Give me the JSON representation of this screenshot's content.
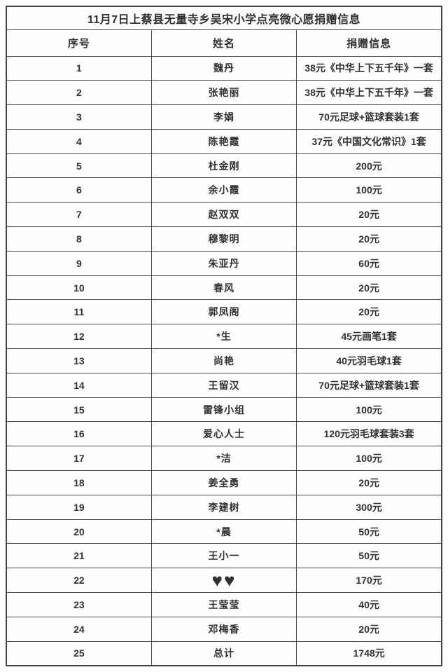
{
  "table": {
    "title": "11月7日上蔡县无量寺乡吴宋小学点亮微心愿捐赠信息",
    "headers": [
      "序号",
      "姓名",
      "捐赠信息"
    ],
    "rows": [
      {
        "no": "1",
        "name": "魏丹",
        "donation": "38元《中华上下五千年》一套"
      },
      {
        "no": "2",
        "name": "张艳丽",
        "donation": "38元《中华上下五千年》一套"
      },
      {
        "no": "3",
        "name": "李娟",
        "donation": "70元足球+篮球套装1套"
      },
      {
        "no": "4",
        "name": "陈艳霞",
        "donation": "37元《中国文化常识》1套"
      },
      {
        "no": "5",
        "name": "杜金刚",
        "donation": "200元"
      },
      {
        "no": "6",
        "name": "余小霞",
        "donation": "100元"
      },
      {
        "no": "7",
        "name": "赵双双",
        "donation": "20元"
      },
      {
        "no": "8",
        "name": "穆黎明",
        "donation": "20元"
      },
      {
        "no": "9",
        "name": "朱亚丹",
        "donation": "60元"
      },
      {
        "no": "10",
        "name": "春风",
        "donation": "20元"
      },
      {
        "no": "11",
        "name": "郭凤阁",
        "donation": "20元"
      },
      {
        "no": "12",
        "name": "*生",
        "donation": "45元画笔1套"
      },
      {
        "no": "13",
        "name": "尚艳",
        "donation": "40元羽毛球1套"
      },
      {
        "no": "14",
        "name": "王留汉",
        "donation": "70元足球+篮球套装1套"
      },
      {
        "no": "15",
        "name": "雷锋小组",
        "donation": "100元"
      },
      {
        "no": "16",
        "name": "爱心人士",
        "donation": "120元羽毛球套装3套"
      },
      {
        "no": "17",
        "name": "*洁",
        "donation": "100元"
      },
      {
        "no": "18",
        "name": "姜全勇",
        "donation": "20元"
      },
      {
        "no": "19",
        "name": "李建树",
        "donation": "300元"
      },
      {
        "no": "20",
        "name": "*晨",
        "donation": "50元"
      },
      {
        "no": "21",
        "name": "王小一",
        "donation": "50元"
      },
      {
        "no": "22",
        "name": "♥♥",
        "donation": "170元",
        "hearts": true
      },
      {
        "no": "23",
        "name": "王莹莹",
        "donation": "40元"
      },
      {
        "no": "24",
        "name": "邓梅香",
        "donation": "20元"
      },
      {
        "no": "25",
        "name": "总计",
        "donation": "1748元"
      }
    ]
  },
  "colors": {
    "heart": "#c3161c",
    "border": "#4a4a4a",
    "text": "#303030"
  }
}
